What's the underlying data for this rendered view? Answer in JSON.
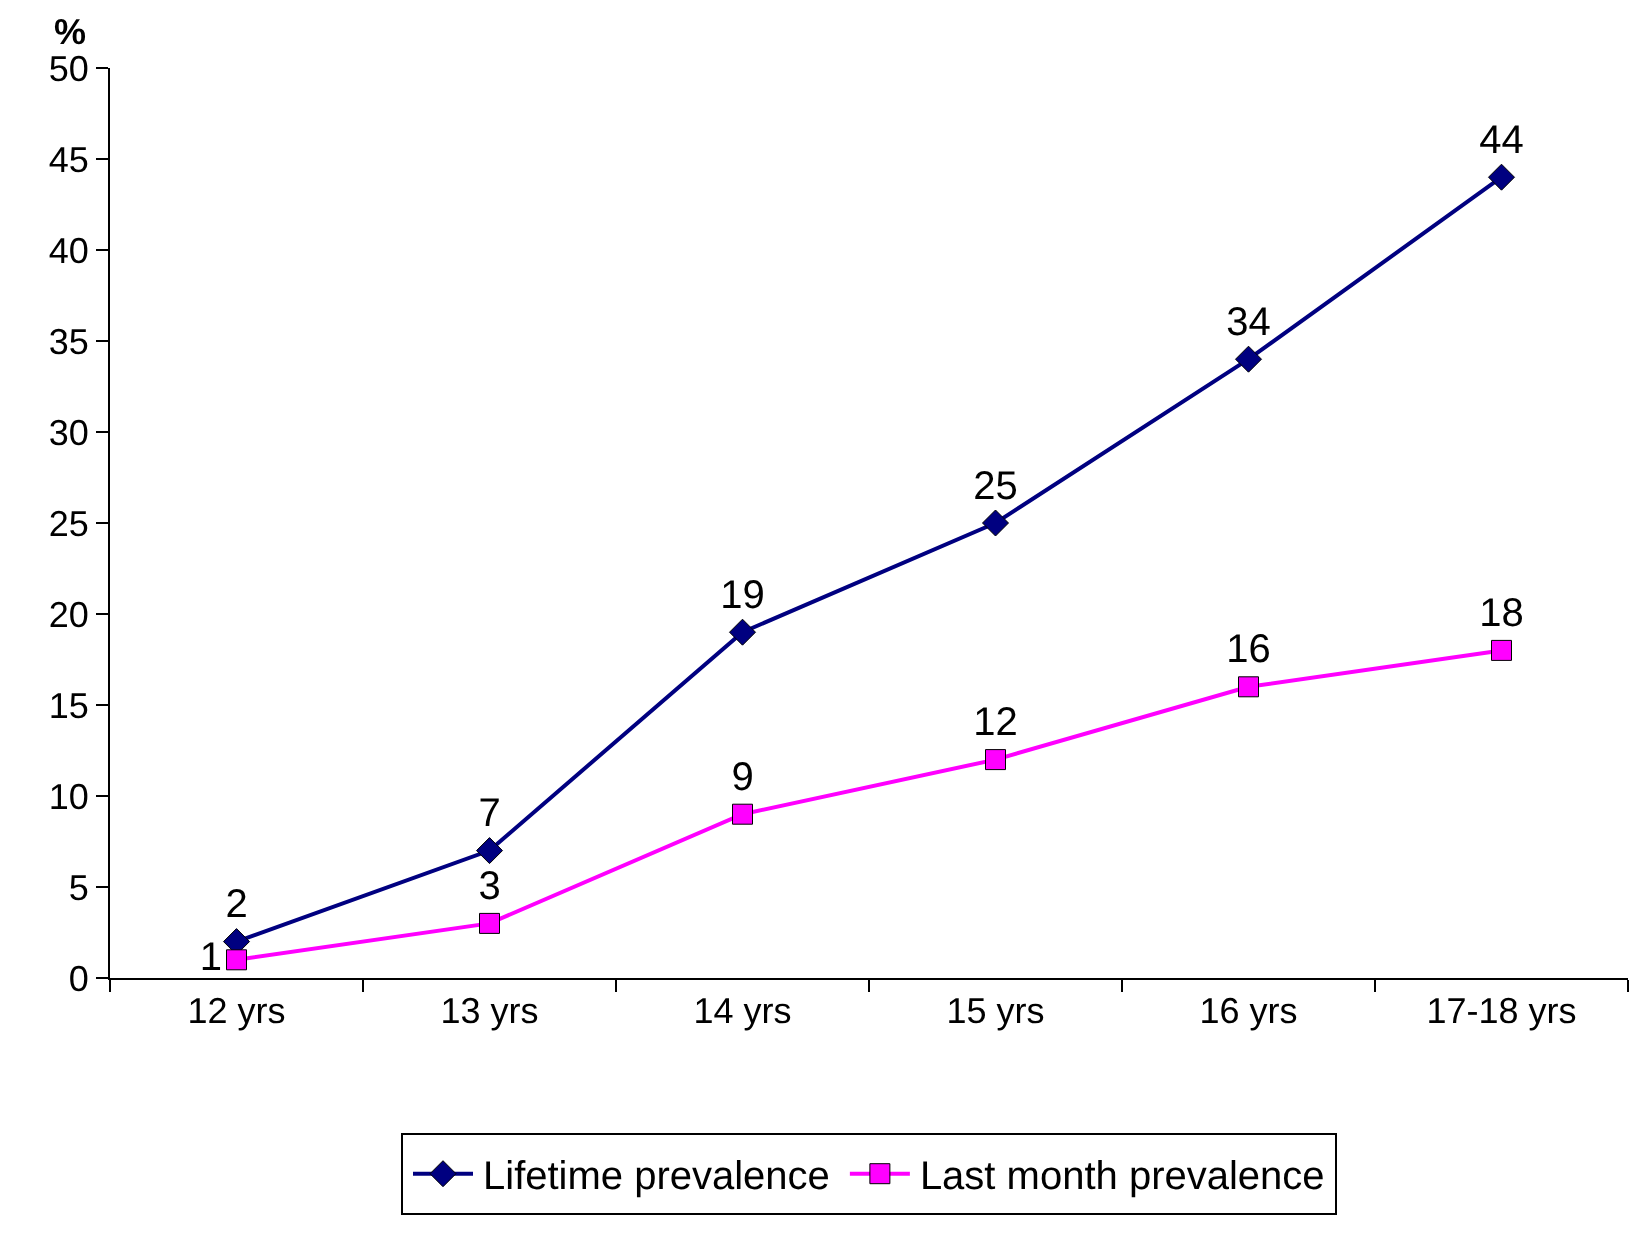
{
  "chart_data": {
    "type": "line",
    "ylabel": "%",
    "categories": [
      "12 yrs",
      "13 yrs",
      "14 yrs",
      "15 yrs",
      "16 yrs",
      "17-18 yrs"
    ],
    "series": [
      {
        "name": "Lifetime prevalence",
        "color": "#000080",
        "marker": "diamond",
        "values": [
          2,
          7,
          19,
          25,
          34,
          44
        ]
      },
      {
        "name": "Last month prevalence",
        "color": "#ff00ff",
        "marker": "square",
        "values": [
          1,
          3,
          9,
          12,
          16,
          18
        ]
      }
    ],
    "ylim": [
      0,
      50
    ],
    "yticks": [
      0,
      5,
      10,
      15,
      20,
      25,
      30,
      35,
      40,
      45,
      50
    ],
    "grid": false,
    "legend": "bottom",
    "data_labels": true,
    "line_style": "solid"
  }
}
